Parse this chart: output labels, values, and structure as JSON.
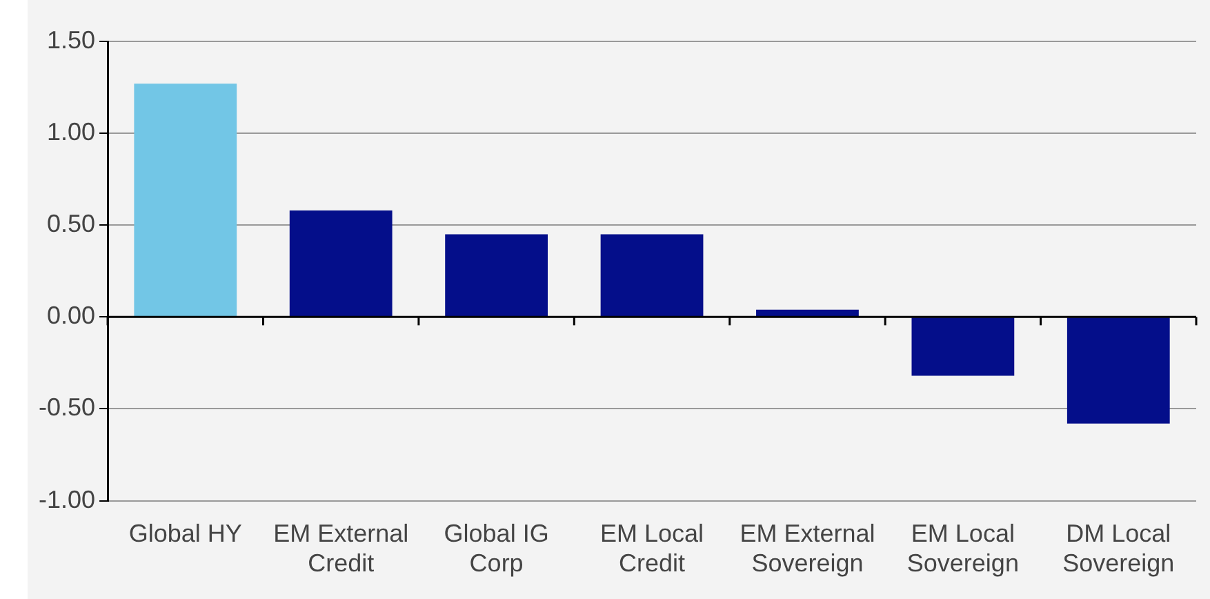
{
  "chart_data": {
    "type": "bar",
    "categories": [
      "Global HY",
      "EM External\nCredit",
      "Global IG\nCorp",
      "EM Local\nCredit",
      "EM External\nSovereign",
      "EM Local\nSovereign",
      "DM Local\nSovereign"
    ],
    "values": [
      1.27,
      0.58,
      0.45,
      0.45,
      0.04,
      -0.32,
      -0.58
    ],
    "colors": [
      "#72c6e6",
      "#040e8a",
      "#040e8a",
      "#040e8a",
      "#040e8a",
      "#040e8a",
      "#040e8a"
    ],
    "ylim": [
      -1,
      1.5
    ],
    "yticks": [
      {
        "value": -1,
        "label": "-1.00"
      },
      {
        "value": -0.5,
        "label": "-0.50"
      },
      {
        "value": 0,
        "label": "0.00"
      },
      {
        "value": 0.5,
        "label": "0.50"
      },
      {
        "value": 1,
        "label": "1.00"
      },
      {
        "value": 1.5,
        "label": "1.50"
      }
    ],
    "grid": "y"
  }
}
